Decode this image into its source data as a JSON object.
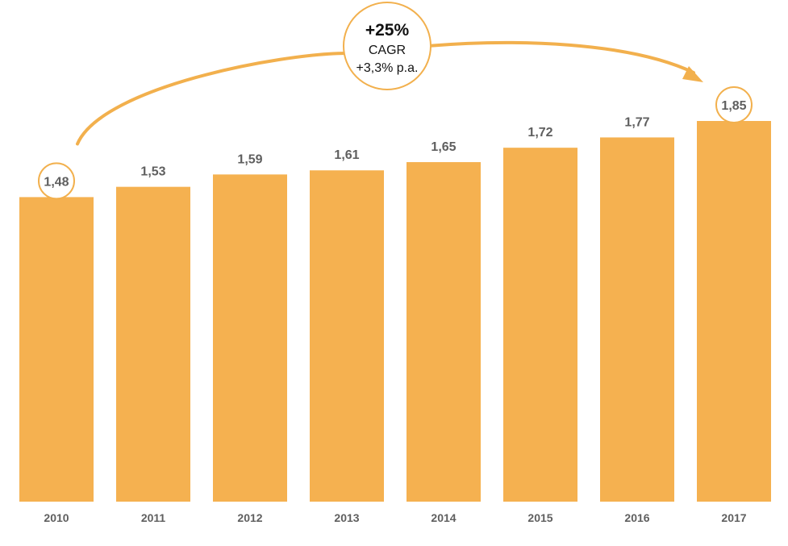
{
  "chart_data": {
    "type": "bar",
    "categories": [
      "2010",
      "2011",
      "2012",
      "2013",
      "2014",
      "2015",
      "2016",
      "2017"
    ],
    "values": [
      1.48,
      1.53,
      1.59,
      1.61,
      1.65,
      1.72,
      1.77,
      1.85
    ],
    "value_labels": [
      "1,48",
      "1,53",
      "1,59",
      "1,61",
      "1,65",
      "1,72",
      "1,77",
      "1,85"
    ],
    "ylim": [
      0,
      1.85
    ],
    "grid": false,
    "legend": "none",
    "bar_color": "#F5B150",
    "highlighted_categories": [
      "2010",
      "2017"
    ],
    "annotation": {
      "growth": "+25%",
      "label": "CAGR",
      "rate": "+3,3% p.a.",
      "from": "2010",
      "to": "2017",
      "color": "#F2B04D"
    }
  }
}
